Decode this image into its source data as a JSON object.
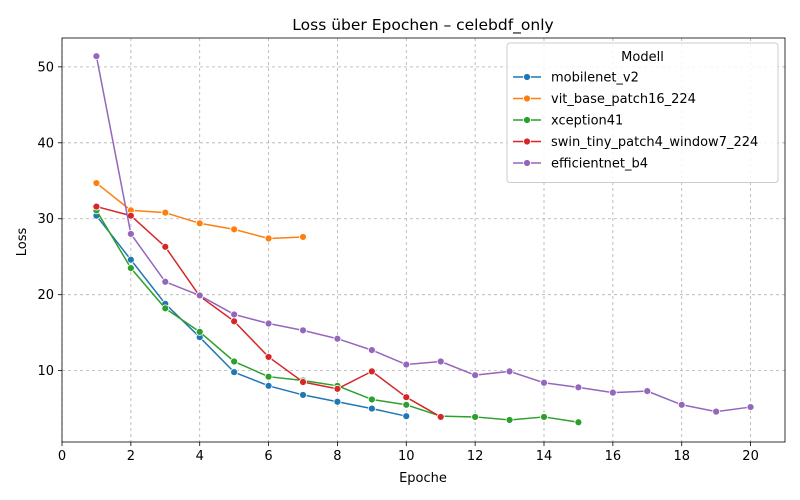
{
  "chart_data": {
    "type": "line",
    "title": "Loss über Epochen – celebdf_only",
    "xlabel": "Epoche",
    "ylabel": "Loss",
    "xlim": [
      0,
      21
    ],
    "ylim": [
      0.6,
      53.8
    ],
    "xticks": [
      0,
      2,
      4,
      6,
      8,
      10,
      12,
      14,
      16,
      18,
      20
    ],
    "yticks": [
      10,
      20,
      30,
      40,
      50
    ],
    "grid": true,
    "legend": {
      "title": "Modell",
      "placement": "top-right"
    },
    "series": [
      {
        "name": "mobilenet_v2",
        "color": "#1f77b4",
        "x": [
          1,
          2,
          3,
          4,
          5,
          6,
          7,
          8,
          9,
          10
        ],
        "y": [
          30.4,
          24.6,
          18.8,
          14.4,
          9.8,
          8.0,
          6.8,
          5.9,
          5.0,
          4.0
        ]
      },
      {
        "name": "vit_base_patch16_224",
        "color": "#ff7f0e",
        "x": [
          1,
          2,
          3,
          4,
          5,
          6,
          7
        ],
        "y": [
          34.7,
          31.1,
          30.8,
          29.4,
          28.6,
          27.4,
          27.6
        ]
      },
      {
        "name": "xception41",
        "color": "#2ca02c",
        "x": [
          1,
          2,
          3,
          4,
          5,
          6,
          7,
          8,
          9,
          10,
          11,
          12,
          13,
          14,
          15
        ],
        "y": [
          31.1,
          23.5,
          18.2,
          15.1,
          11.2,
          9.2,
          8.7,
          8.0,
          6.2,
          5.5,
          4.0,
          3.9,
          3.5,
          3.9,
          3.2
        ]
      },
      {
        "name": "swin_tiny_patch4_window7_224",
        "color": "#d62728",
        "x": [
          1,
          2,
          3,
          4,
          5,
          6,
          7,
          8,
          9,
          10,
          11
        ],
        "y": [
          31.6,
          30.4,
          26.3,
          19.8,
          16.5,
          11.8,
          8.5,
          7.6,
          9.9,
          6.5,
          3.9
        ]
      },
      {
        "name": "efficientnet_b4",
        "color": "#9467bd",
        "x": [
          1,
          2,
          3,
          4,
          5,
          6,
          7,
          8,
          9,
          10,
          11,
          12,
          13,
          14,
          15,
          16,
          17,
          18,
          19,
          20
        ],
        "y": [
          51.4,
          28.0,
          21.7,
          19.9,
          17.4,
          16.2,
          15.3,
          14.2,
          12.7,
          10.8,
          11.2,
          9.4,
          9.9,
          8.4,
          7.8,
          7.1,
          7.3,
          5.5,
          4.6,
          5.2
        ]
      }
    ]
  }
}
